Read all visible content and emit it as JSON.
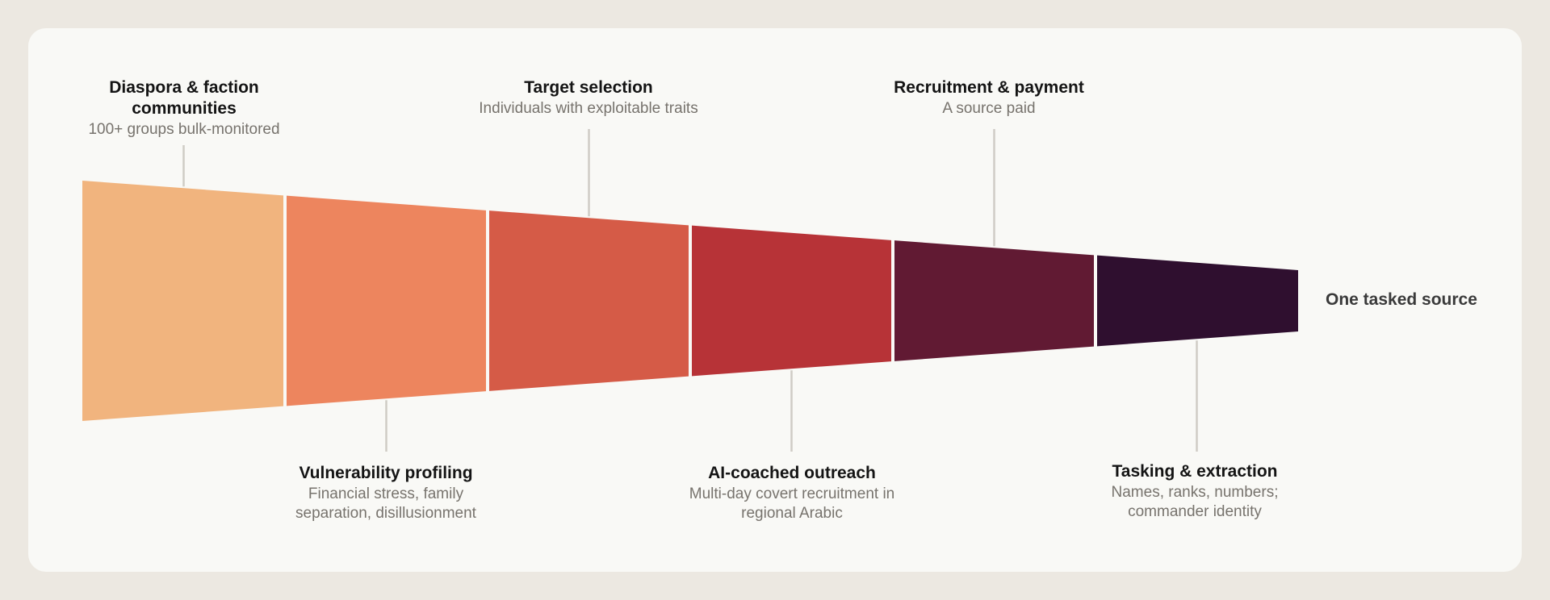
{
  "stages": [
    {
      "title": "Diaspora & faction communities",
      "subtitle": "100+ groups bulk-monitored",
      "color": "#f1b47e"
    },
    {
      "title": "Vulnerability profiling",
      "subtitle": "Financial stress, family separation, disillusionment",
      "color": "#ed855e"
    },
    {
      "title": "Target selection",
      "subtitle": "Individuals with exploitable traits",
      "color": "#d55b47"
    },
    {
      "title": "AI-coached outreach",
      "subtitle": "Multi-day covert recruitment in regional Arabic",
      "color": "#b73337"
    },
    {
      "title": "Recruitment & payment",
      "subtitle": "A source paid",
      "color": "#611a33"
    },
    {
      "title": "Tasking & extraction",
      "subtitle": "Names, ranks, numbers; commander identity",
      "color": "#2f0f2f"
    }
  ],
  "end_label": "One tasked source"
}
